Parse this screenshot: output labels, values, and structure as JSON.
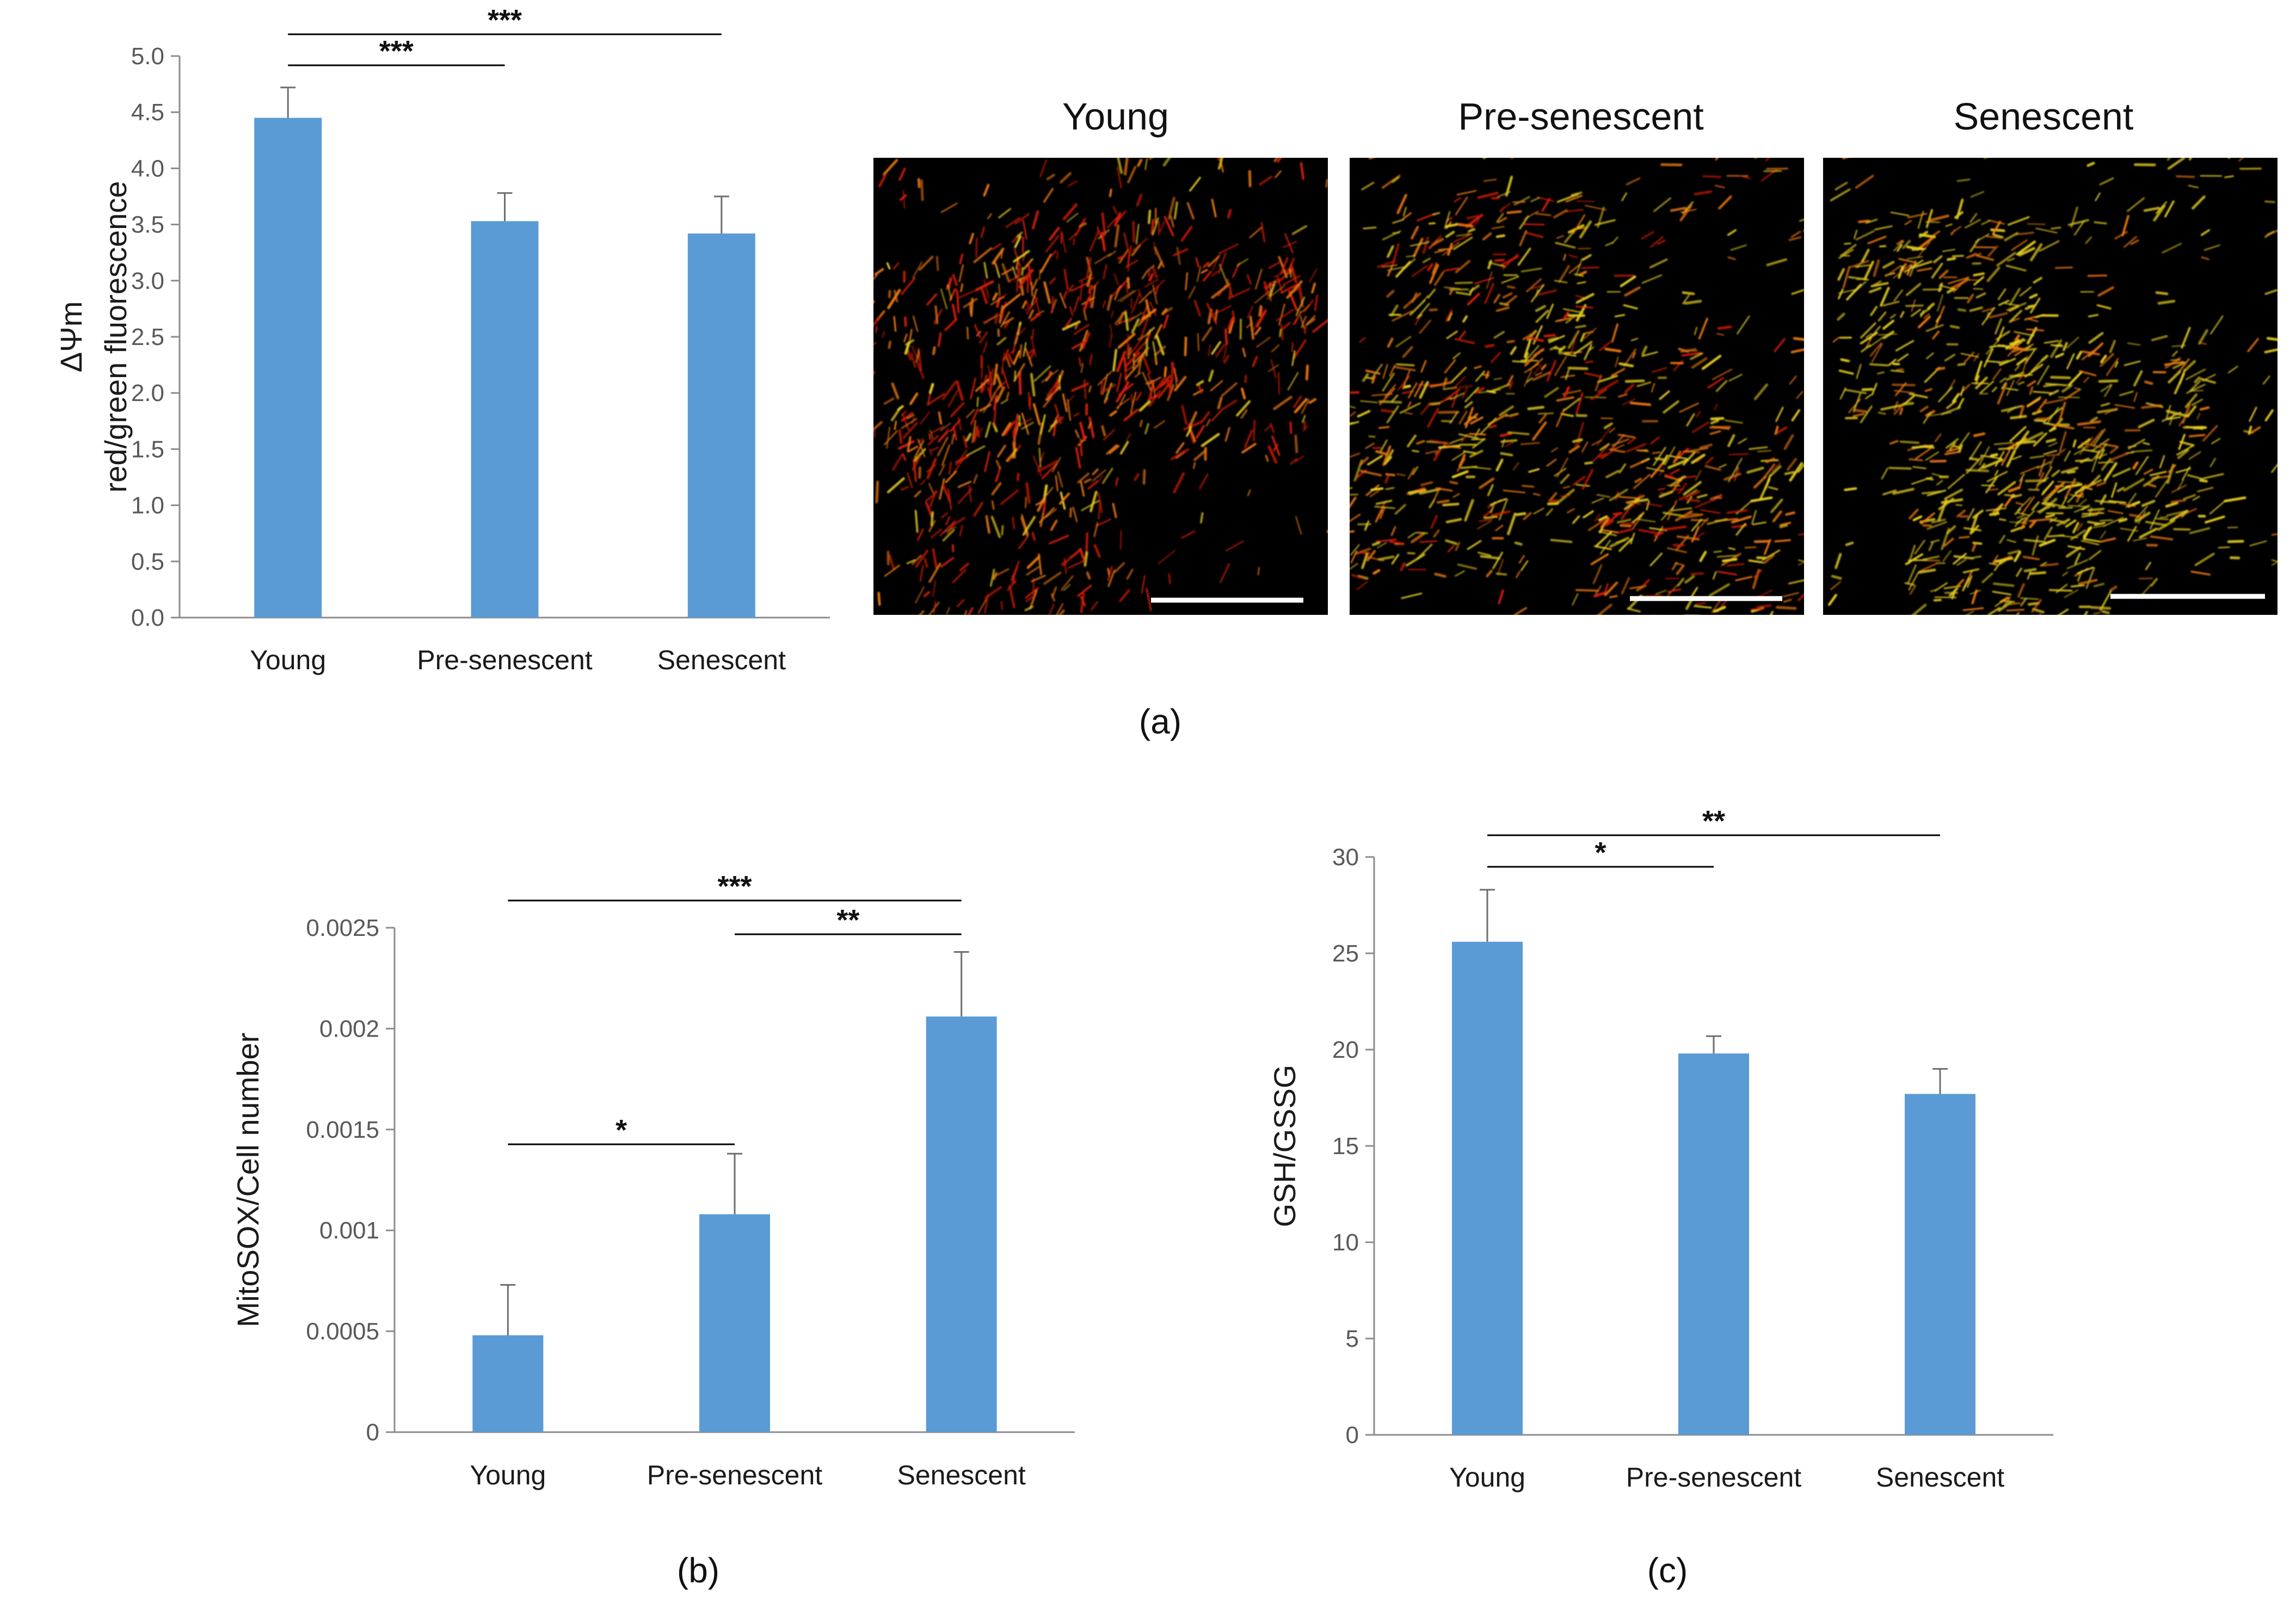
{
  "colors": {
    "bar": "#5B9BD5",
    "axis": "#8c8c8c",
    "error": "#6e6e6e",
    "bracket": "#000000",
    "micro_bg": "#000000",
    "micro_red": "#d81c08",
    "micro_orange": "#f07a10",
    "micro_yellow": "#e8d020",
    "scale_bar": "#ffffff"
  },
  "panel_labels": {
    "a": "(a)",
    "b": "(b)",
    "c": "(c)"
  },
  "microscopy": {
    "titles": [
      "Young",
      "Pre-senescent",
      "Senescent"
    ],
    "description_icons": [
      "mitochondria-young-image",
      "mitochondria-presenescent-image",
      "mitochondria-senescent-image"
    ]
  },
  "chart_data": [
    {
      "id": "a",
      "type": "bar",
      "categories": [
        "Young",
        "Pre-senescent",
        "Senescent"
      ],
      "values": [
        4.45,
        3.53,
        3.42
      ],
      "errors": [
        0.27,
        0.25,
        0.33
      ],
      "ylabel_lines": [
        "ΔΨm",
        "red/green fluorescence"
      ],
      "ylim": [
        0,
        5
      ],
      "ytick_values": [
        0,
        0.5,
        1,
        1.5,
        2,
        2.5,
        3,
        3.5,
        4,
        4.5,
        5
      ],
      "ytick_labels": [
        "0.0",
        "0.5",
        "1.0",
        "1.5",
        "2.0",
        "2.5",
        "3.0",
        "3.5",
        "4.0",
        "4.5",
        "5.0"
      ],
      "significance": [
        {
          "from": 0,
          "to": 2,
          "label": "***"
        },
        {
          "from": 0,
          "to": 1,
          "label": "***"
        }
      ]
    },
    {
      "id": "b",
      "type": "bar",
      "categories": [
        "Young",
        "Pre-senescent",
        "Senescent"
      ],
      "values": [
        0.00048,
        0.00108,
        0.00206
      ],
      "errors": [
        0.00025,
        0.0003,
        0.00032
      ],
      "ylabel_lines": [
        "MitoSOX/Cell number"
      ],
      "ylim": [
        0,
        0.0025
      ],
      "ytick_values": [
        0,
        0.0005,
        0.001,
        0.0015,
        0.002,
        0.0025
      ],
      "ytick_labels": [
        "0",
        "0.0005",
        "0.001",
        "0.0015",
        "0.002",
        "0.0025"
      ],
      "significance": [
        {
          "from": 0,
          "to": 2,
          "label": "***"
        },
        {
          "from": 1,
          "to": 2,
          "label": "**"
        },
        {
          "from": 0,
          "to": 1,
          "label": "*"
        }
      ]
    },
    {
      "id": "c",
      "type": "bar",
      "categories": [
        "Young",
        "Pre-senescent",
        "Senescent"
      ],
      "values": [
        25.6,
        19.8,
        17.7
      ],
      "errors": [
        2.7,
        0.9,
        1.3
      ],
      "ylabel_lines": [
        "GSH/GSSG"
      ],
      "ylim": [
        0,
        30
      ],
      "ytick_values": [
        0,
        5,
        10,
        15,
        20,
        25,
        30
      ],
      "ytick_labels": [
        "0",
        "5",
        "10",
        "15",
        "20",
        "25",
        "30"
      ],
      "significance": [
        {
          "from": 0,
          "to": 2,
          "label": "**"
        },
        {
          "from": 0,
          "to": 1,
          "label": "*"
        }
      ]
    }
  ]
}
